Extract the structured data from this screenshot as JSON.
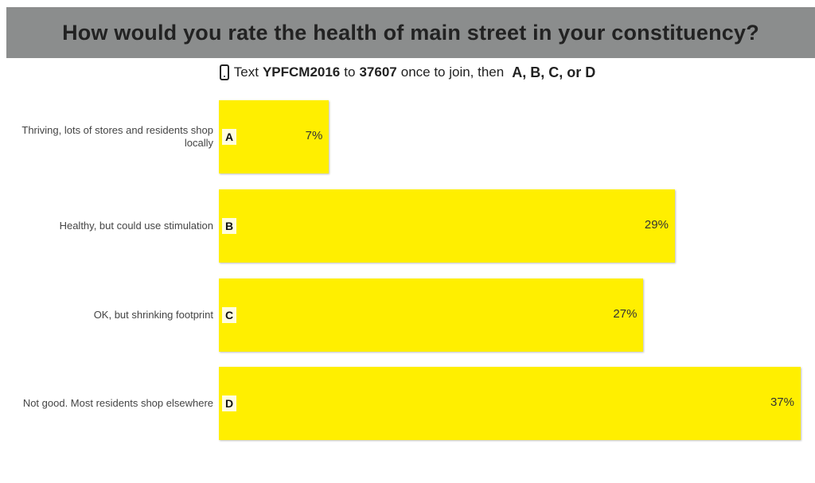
{
  "header": {
    "title": "How would you rate the health of main street in your constituency?"
  },
  "instructions": {
    "icon": "phone-icon",
    "prefix": "Text",
    "keyword": "YPFCM2016",
    "middle": "to",
    "number": "37607",
    "suffix": "once to join, then",
    "options": "A, B, C, or D"
  },
  "colors": {
    "bar": "#ffef00",
    "header_bg": "#8b8d8d",
    "letter_bg": "#fffde0"
  },
  "chart_data": {
    "type": "bar",
    "orientation": "horizontal",
    "title": "How would you rate the health of main street in your constituency?",
    "categories": [
      "Thriving, lots of stores and residents shop locally",
      "Healthy, but could use stimulation",
      "OK, but shrinking footprint",
      "Not good. Most residents shop elsewhere"
    ],
    "letters": [
      "A",
      "B",
      "C",
      "D"
    ],
    "values": [
      7,
      29,
      27,
      37
    ],
    "value_labels": [
      "7%",
      "29%",
      "27%",
      "37%"
    ],
    "xlim": [
      0,
      37
    ],
    "grid": false
  }
}
